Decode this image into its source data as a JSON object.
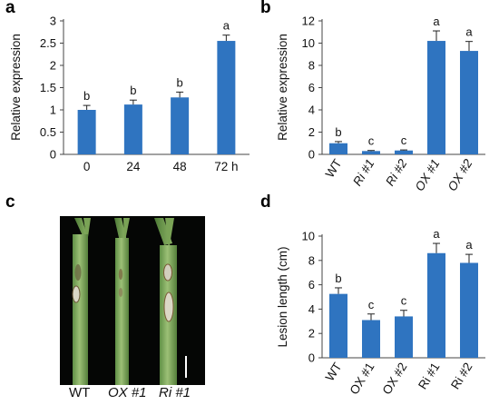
{
  "panels": [
    {
      "letter": "a"
    },
    {
      "letter": "b"
    },
    {
      "letter": "c"
    },
    {
      "letter": "d"
    }
  ],
  "photo": {
    "labels": [
      {
        "text": "WT",
        "italic": false
      },
      {
        "text": "OX #1",
        "italic": true
      },
      {
        "text": "Ri #1",
        "italic": true
      }
    ]
  },
  "chart_data": [
    {
      "panel": "a",
      "type": "bar",
      "categories": [
        "0",
        "24",
        "48",
        "72 h"
      ],
      "values": [
        1.0,
        1.12,
        1.28,
        2.55
      ],
      "errors": [
        0.1,
        0.1,
        0.12,
        0.13
      ],
      "significance": [
        "b",
        "b",
        "b",
        "a"
      ],
      "ylabel": "Relative expression",
      "xlabel": "",
      "ylim": [
        0,
        3
      ],
      "yticks": [
        "0",
        "0.5",
        "1",
        "1.5",
        "2",
        "2.5",
        "3"
      ],
      "grid": false,
      "bar_color": "#2f74c0"
    },
    {
      "panel": "b",
      "type": "bar",
      "categories": [
        "WT",
        "Ri #1",
        "Ri #2",
        "OX #1",
        "OX #2"
      ],
      "values": [
        1.0,
        0.3,
        0.35,
        10.2,
        9.3
      ],
      "errors": [
        0.15,
        0.05,
        0.05,
        0.9,
        0.85
      ],
      "significance": [
        "b",
        "c",
        "c",
        "a",
        "a"
      ],
      "ylabel": "Relative expression",
      "xlabel": "",
      "ylim": [
        0,
        12
      ],
      "yticks": [
        "0",
        "2",
        "4",
        "6",
        "8",
        "10",
        "12"
      ],
      "grid": false,
      "bar_color": "#2f74c0"
    },
    {
      "panel": "d",
      "type": "bar",
      "categories": [
        "WT",
        "OX #1",
        "OX #2",
        "Ri #1",
        "Ri #2"
      ],
      "values": [
        5.25,
        3.1,
        3.4,
        8.6,
        7.8
      ],
      "errors": [
        0.5,
        0.5,
        0.5,
        0.8,
        0.7
      ],
      "significance": [
        "b",
        "c",
        "c",
        "a",
        "a"
      ],
      "ylabel": "Lesion length (cm)",
      "xlabel": "",
      "ylim": [
        0,
        10
      ],
      "yticks": [
        "0",
        "2",
        "4",
        "6",
        "8",
        "10"
      ],
      "grid": false,
      "bar_color": "#2f74c0"
    }
  ]
}
